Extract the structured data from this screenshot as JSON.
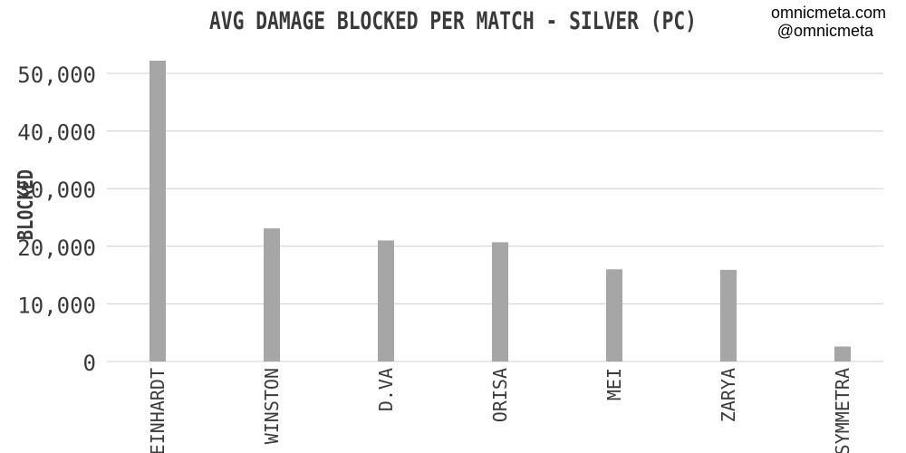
{
  "credits": {
    "site": "omnicmeta.com",
    "handle": "@omnicmeta"
  },
  "colors": {
    "bar": "#a6a6a6",
    "grid": "#cfcfcf",
    "text": "#3a3a3a"
  },
  "chart_data": {
    "type": "bar",
    "title": "AVG DAMAGE BLOCKED PER MATCH - SILVER (PC)",
    "xlabel": "",
    "ylabel": "BLOCKED",
    "categories": [
      "REINHARDT",
      "WINSTON",
      "D.VA",
      "ORISA",
      "MEI",
      "ZARYA",
      "SYMMETRA"
    ],
    "values": [
      52200,
      23100,
      21000,
      20700,
      16000,
      15900,
      2600
    ],
    "ylim": [
      0,
      50000
    ],
    "yticks": [
      0,
      10000,
      20000,
      30000,
      40000,
      50000
    ],
    "ytick_labels": [
      "0",
      "10,000",
      "20,000",
      "30,000",
      "40,000",
      "50,000"
    ],
    "grid": true,
    "legend": "none"
  }
}
